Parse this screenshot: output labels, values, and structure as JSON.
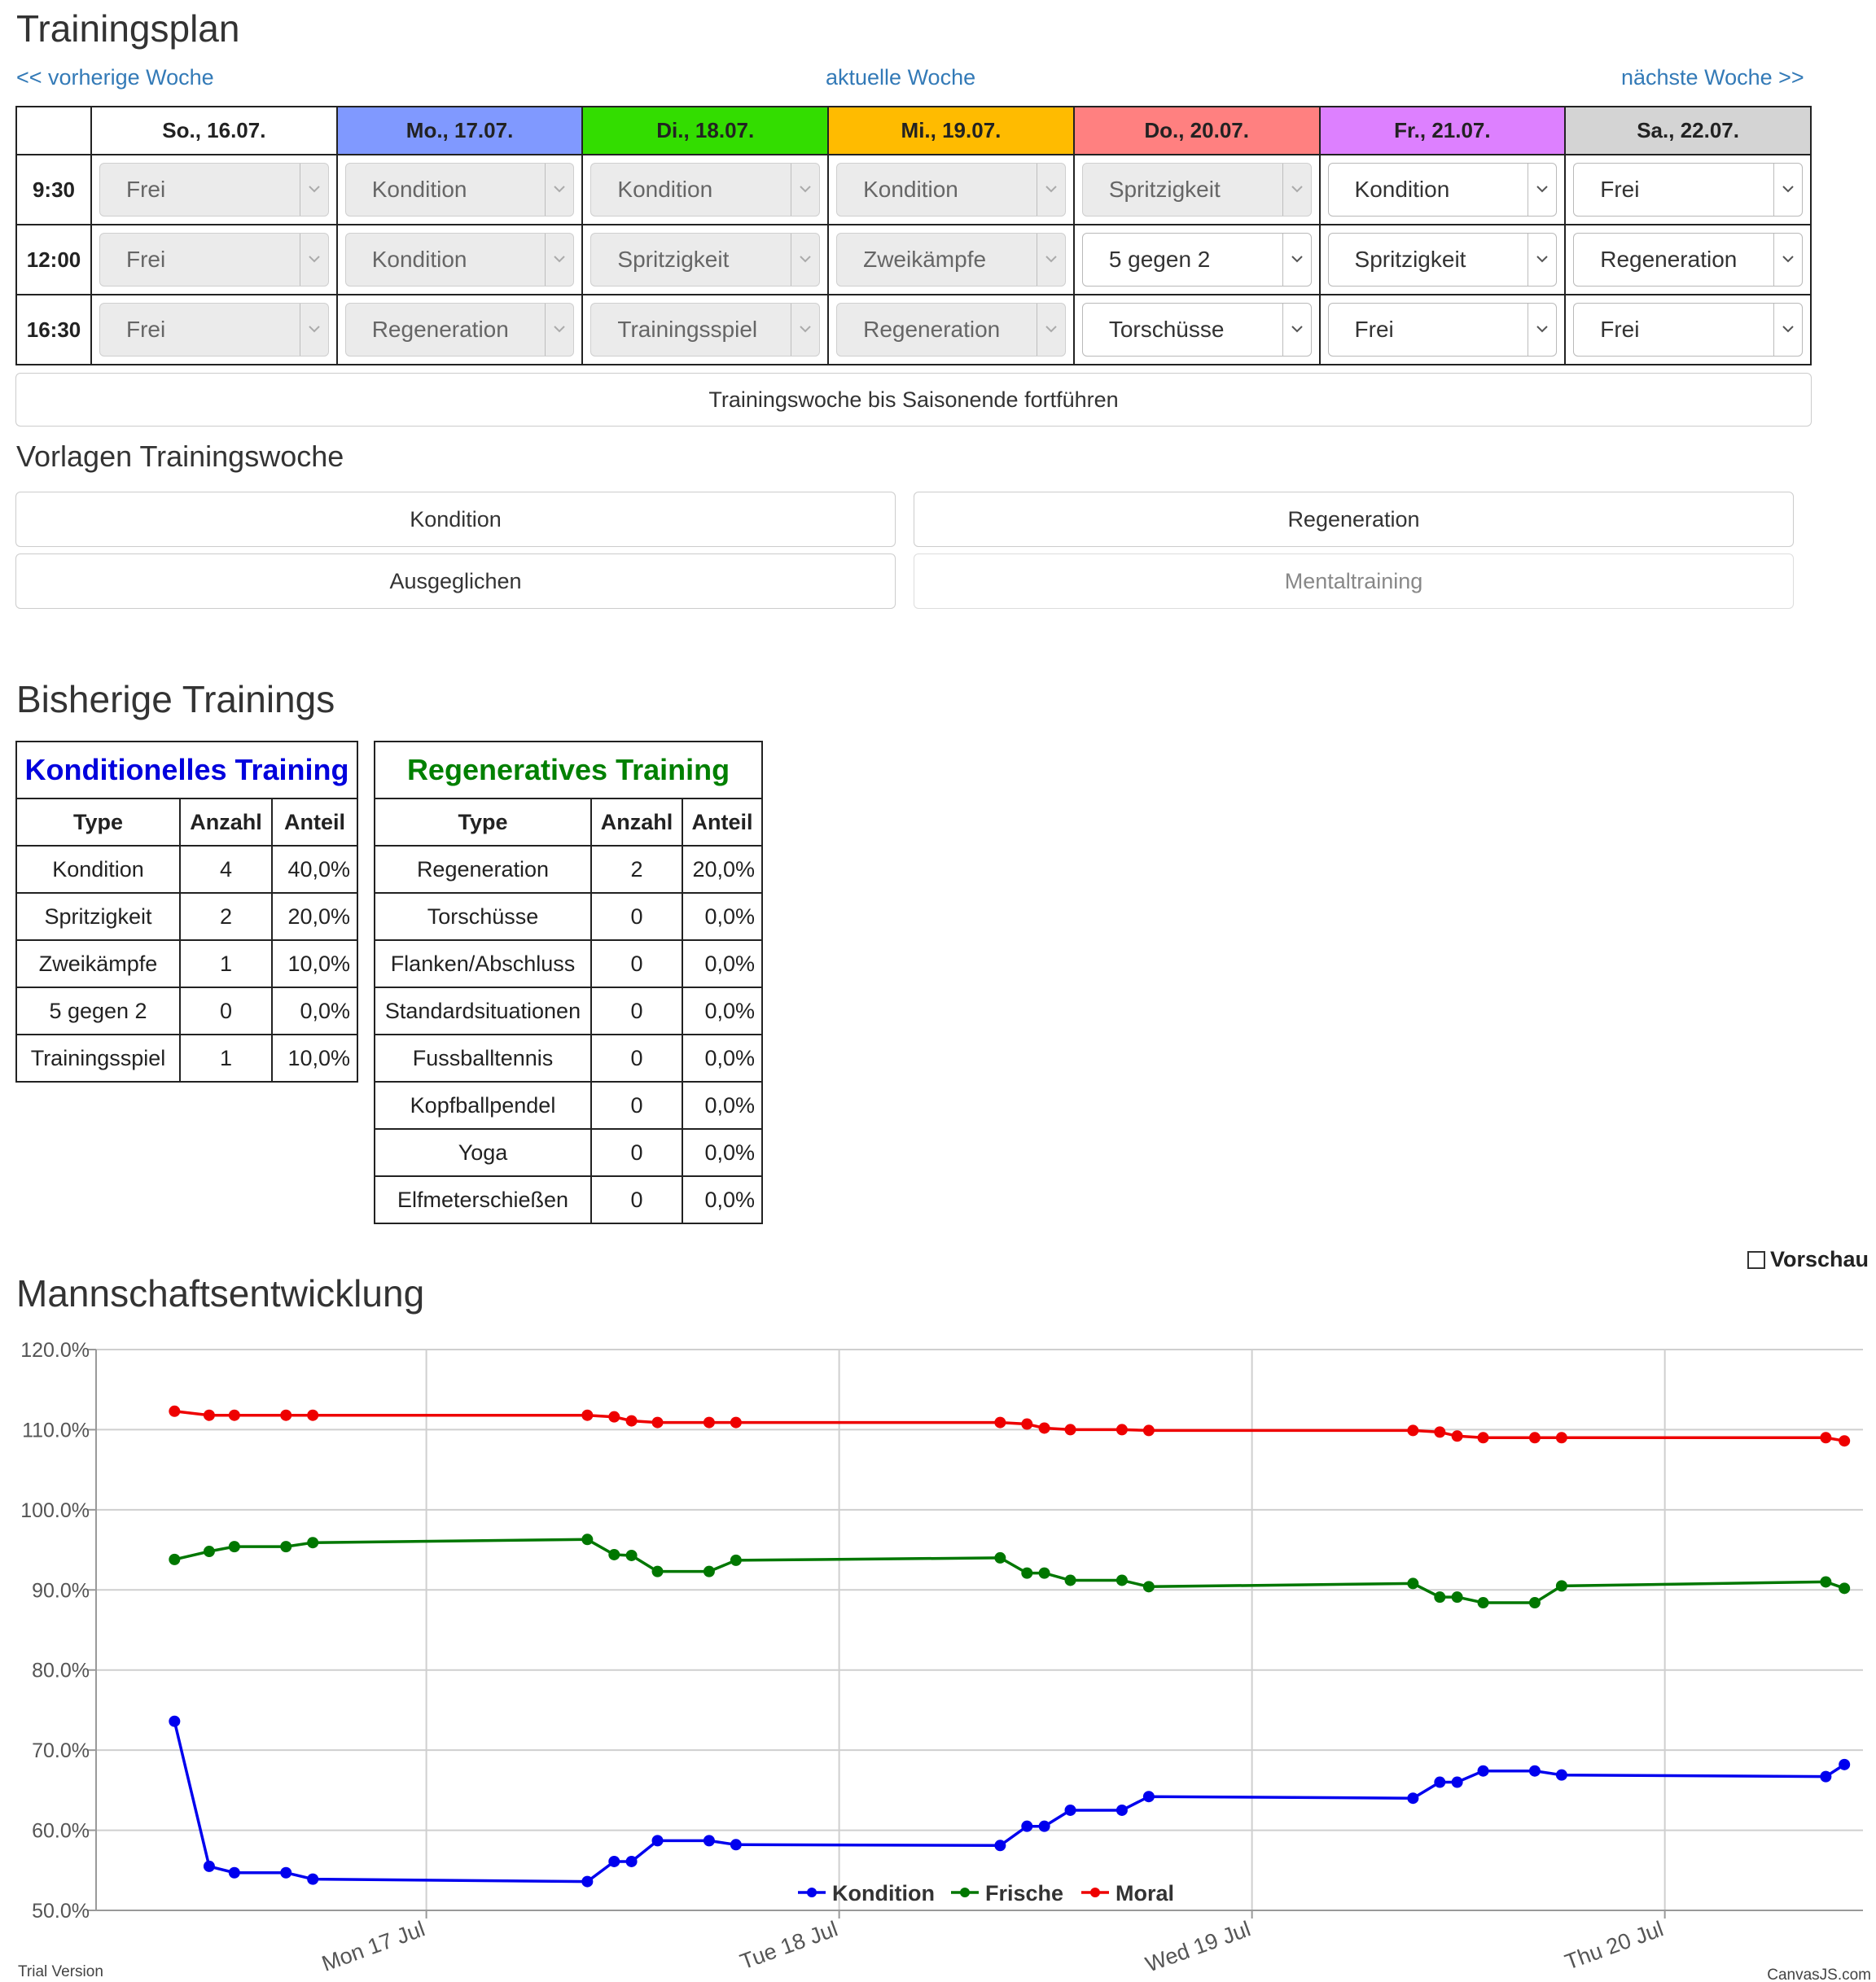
{
  "title": "Trainingsplan",
  "nav": {
    "prev": "<< vorherige Woche",
    "current": "aktuelle Woche",
    "next": "nächste Woche >>"
  },
  "plan": {
    "days": [
      {
        "label": "So., 16.07.",
        "color": "#ffffff"
      },
      {
        "label": "Mo., 17.07.",
        "color": "#8099ff"
      },
      {
        "label": "Di., 18.07.",
        "color": "#33dd00"
      },
      {
        "label": "Mi., 19.07.",
        "color": "#ffbb00"
      },
      {
        "label": "Do., 20.07.",
        "color": "#ff8080"
      },
      {
        "label": "Fr., 21.07.",
        "color": "#dd80ff"
      },
      {
        "label": "Sa., 22.07.",
        "color": "#d4d4d4"
      }
    ],
    "slots": [
      {
        "time": "9:30",
        "values": [
          "Frei",
          "Kondition",
          "Kondition",
          "Kondition",
          "Spritzigkeit",
          "Kondition",
          "Frei"
        ]
      },
      {
        "time": "12:00",
        "values": [
          "Frei",
          "Kondition",
          "Spritzigkeit",
          "Zweikämpfe",
          "5 gegen 2",
          "Spritzigkeit",
          "Regeneration"
        ]
      },
      {
        "time": "16:30",
        "values": [
          "Frei",
          "Regeneration",
          "Trainingsspiel",
          "Regeneration",
          "Torschüsse",
          "Frei",
          "Frei"
        ]
      }
    ],
    "disabled": [
      [
        true,
        true,
        true,
        true,
        true,
        false,
        false
      ],
      [
        true,
        true,
        true,
        true,
        false,
        false,
        false
      ],
      [
        true,
        true,
        true,
        true,
        false,
        false,
        false
      ]
    ]
  },
  "continue_button": "Trainingswoche bis Saisonende fortführen",
  "templates": {
    "title": "Vorlagen Trainingswoche",
    "kondition": "Kondition",
    "regeneration": "Regeneration",
    "ausgeglichen": "Ausgeglichen",
    "mentaltraining": "Mentaltraining"
  },
  "history": {
    "title": "Bisherige Trainings",
    "konditionell": {
      "title": "Konditionelles Training",
      "title_color": "#0000dd",
      "headers": [
        "Type",
        "Anzahl",
        "Anteil"
      ],
      "rows": [
        [
          "Kondition",
          "4",
          "40,0%"
        ],
        [
          "Spritzigkeit",
          "2",
          "20,0%"
        ],
        [
          "Zweikämpfe",
          "1",
          "10,0%"
        ],
        [
          "5 gegen 2",
          "0",
          "0,0%"
        ],
        [
          "Trainingsspiel",
          "1",
          "10,0%"
        ]
      ]
    },
    "regenerativ": {
      "title": "Regeneratives Training",
      "title_color": "#008000",
      "headers": [
        "Type",
        "Anzahl",
        "Anteil"
      ],
      "rows": [
        [
          "Regeneration",
          "2",
          "20,0%"
        ],
        [
          "Torschüsse",
          "0",
          "0,0%"
        ],
        [
          "Flanken/Abschluss",
          "0",
          "0,0%"
        ],
        [
          "Standardsituationen",
          "0",
          "0,0%"
        ],
        [
          "Fussballtennis",
          "0",
          "0,0%"
        ],
        [
          "Kopfballpendel",
          "0",
          "0,0%"
        ],
        [
          "Yoga",
          "0",
          "0,0%"
        ],
        [
          "Elfmeterschießen",
          "0",
          "0,0%"
        ]
      ]
    }
  },
  "development": {
    "title": "Mannschaftsentwicklung",
    "preview_label": "Vorschau"
  },
  "chart_data": {
    "type": "line",
    "ylim": [
      50,
      120
    ],
    "yticks": [
      "120.0%",
      "110.0%",
      "100.0%",
      "90.0%",
      "80.0%",
      "70.0%",
      "60.0%",
      "50.0%"
    ],
    "xticks": [
      {
        "label": "Mon 17 Jul",
        "x": 17.0
      },
      {
        "label": "Tue 18 Jul",
        "x": 18.0
      },
      {
        "label": "Wed 19 Jul",
        "x": 19.0
      },
      {
        "label": "Thu 20 Jul",
        "x": 20.0
      }
    ],
    "xlim": [
      16.2,
      20.48
    ],
    "grid": true,
    "legend": "bottom-center",
    "x": [
      16.39,
      16.474,
      16.535,
      16.66,
      16.725,
      17.39,
      17.455,
      17.497,
      17.56,
      17.685,
      17.75,
      18.39,
      18.455,
      18.497,
      18.56,
      18.685,
      18.75,
      19.39,
      19.455,
      19.497,
      19.56,
      19.685,
      19.75,
      20.39,
      20.435
    ],
    "series": [
      {
        "name": "Kondition",
        "color": "#0000ee",
        "values": [
          73.6,
          55.5,
          54.7,
          54.7,
          53.9,
          53.6,
          56.1,
          56.1,
          58.7,
          58.7,
          58.2,
          58.1,
          60.5,
          60.5,
          62.5,
          62.5,
          64.2,
          64.0,
          66.0,
          66.0,
          67.4,
          67.4,
          66.9,
          66.7,
          68.2
        ]
      },
      {
        "name": "Frische",
        "color": "#007700",
        "values": [
          93.8,
          94.8,
          95.4,
          95.4,
          95.9,
          96.3,
          94.4,
          94.3,
          92.3,
          92.3,
          93.7,
          94.0,
          92.1,
          92.1,
          91.2,
          91.2,
          90.4,
          90.8,
          89.1,
          89.1,
          88.4,
          88.4,
          90.5,
          91.0,
          90.2
        ]
      },
      {
        "name": "Moral",
        "color": "#ee0000",
        "values": [
          112.3,
          111.8,
          111.8,
          111.8,
          111.8,
          111.8,
          111.6,
          111.1,
          110.9,
          110.9,
          110.9,
          110.9,
          110.7,
          110.2,
          110.0,
          110.0,
          109.9,
          109.9,
          109.7,
          109.2,
          109.0,
          109.0,
          109.0,
          109.0,
          108.6
        ]
      }
    ],
    "credits": {
      "left": "Trial Version",
      "right": "CanvasJS.com"
    }
  }
}
